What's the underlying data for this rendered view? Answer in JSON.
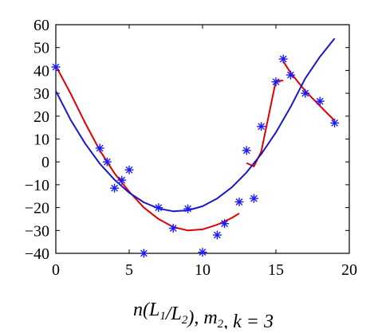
{
  "chart_data": {
    "type": "scatter",
    "title": "",
    "xlabel_parts": [
      {
        "text": "n(L",
        "sub": false
      },
      {
        "text": "1",
        "sub": true
      },
      {
        "text": "/L",
        "sub": false
      },
      {
        "text": "2",
        "sub": true
      },
      {
        "text": "), m",
        "sub": false
      },
      {
        "text": "2",
        "sub": true
      },
      {
        "text": ", k = 3",
        "sub": false
      }
    ],
    "ylabel": "",
    "xlim": [
      0,
      20
    ],
    "ylim": [
      -40,
      60
    ],
    "x_ticks": [
      0,
      5,
      10,
      15,
      20
    ],
    "y_ticks": [
      -40,
      -30,
      -20,
      -10,
      0,
      10,
      20,
      30,
      40,
      50,
      60
    ],
    "x_tick_labels": [
      "0",
      "5",
      "10",
      "15",
      "20"
    ],
    "y_tick_labels": [
      "−40",
      "−30",
      "−20",
      "−10",
      "0",
      "10",
      "20",
      "30",
      "40",
      "50",
      "60"
    ],
    "grid": false,
    "legend": "none",
    "series": [
      {
        "kind": "scatter",
        "marker": "asterisk",
        "color": "#1a1aff",
        "points": [
          [
            0,
            41.5
          ],
          [
            3,
            6
          ],
          [
            3.5,
            0
          ],
          [
            4,
            -11.5
          ],
          [
            4.5,
            -8
          ],
          [
            5,
            -3.5
          ],
          [
            6,
            -40
          ],
          [
            7,
            -20
          ],
          [
            8,
            -29
          ],
          [
            9,
            -20.5
          ],
          [
            10,
            -39.5
          ],
          [
            11,
            -32
          ],
          [
            11.5,
            -27
          ],
          [
            12.5,
            -17.5
          ],
          [
            13,
            5
          ],
          [
            13.5,
            -16
          ],
          [
            14,
            15.5
          ],
          [
            15,
            35
          ],
          [
            15.5,
            45
          ],
          [
            16,
            38
          ],
          [
            17,
            30
          ],
          [
            18,
            26.5
          ],
          [
            19,
            17
          ]
        ]
      },
      {
        "kind": "line",
        "color": "#e00000",
        "points": [
          [
            0,
            42
          ],
          [
            1,
            30
          ],
          [
            2,
            17
          ],
          [
            3,
            5
          ],
          [
            4,
            -5
          ],
          [
            5,
            -13
          ],
          [
            6,
            -20
          ],
          [
            7,
            -25
          ],
          [
            8,
            -28.5
          ],
          [
            9,
            -30
          ],
          [
            10,
            -29.5
          ],
          [
            11,
            -27.5
          ],
          [
            12,
            -24.5
          ],
          [
            12.5,
            -22.5
          ]
        ]
      },
      {
        "kind": "line",
        "color": "#e00000",
        "points": [
          [
            13,
            -0.5
          ],
          [
            13.5,
            -2
          ],
          [
            14,
            4.5
          ],
          [
            15,
            35.5
          ],
          [
            15.5,
            35.5
          ]
        ]
      },
      {
        "kind": "line",
        "color": "#e00000",
        "points": [
          [
            15.5,
            44
          ],
          [
            16,
            39
          ],
          [
            17,
            31
          ],
          [
            18,
            24.5
          ],
          [
            19,
            18
          ]
        ]
      },
      {
        "kind": "line",
        "color": "#1818c8",
        "points": [
          [
            0,
            31
          ],
          [
            1,
            18.5
          ],
          [
            2,
            8
          ],
          [
            3,
            -0.8
          ],
          [
            4,
            -7.8
          ],
          [
            5,
            -13.5
          ],
          [
            6,
            -17.7
          ],
          [
            7,
            -20.4
          ],
          [
            8,
            -21.6
          ],
          [
            9,
            -21.2
          ],
          [
            10,
            -19.4
          ],
          [
            11,
            -16
          ],
          [
            12,
            -11.1
          ],
          [
            13,
            -4.6
          ],
          [
            14,
            3.4
          ],
          [
            15,
            12.9
          ],
          [
            16,
            24
          ],
          [
            17,
            36.5
          ],
          [
            18,
            46
          ],
          [
            19,
            54
          ]
        ]
      }
    ]
  }
}
